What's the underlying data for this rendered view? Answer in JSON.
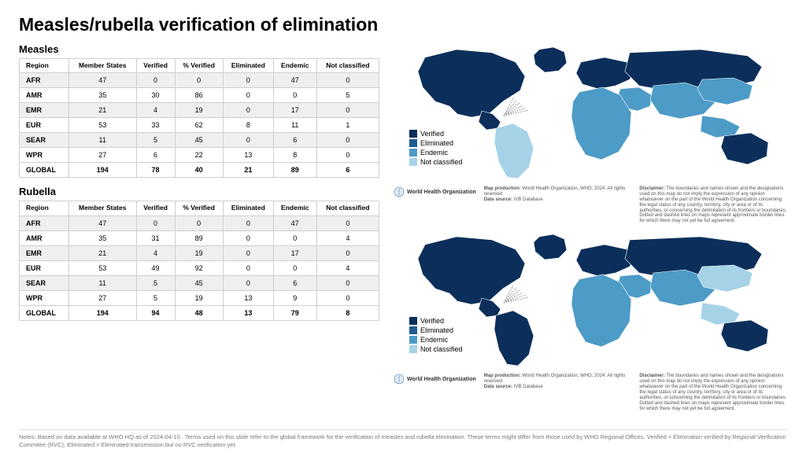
{
  "page_title": "Measles/rubella verification of elimination",
  "columns": [
    "Region",
    "Member States",
    "Verified",
    "% Verified",
    "Eliminated",
    "Endemic",
    "Not classified"
  ],
  "measles": {
    "heading": "Measles",
    "rows": [
      [
        "AFR",
        "47",
        "0",
        "0",
        "0",
        "47",
        "0"
      ],
      [
        "AMR",
        "35",
        "30",
        "86",
        "0",
        "0",
        "5"
      ],
      [
        "EMR",
        "21",
        "4",
        "19",
        "0",
        "17",
        "0"
      ],
      [
        "EUR",
        "53",
        "33",
        "62",
        "8",
        "11",
        "1"
      ],
      [
        "SEAR",
        "11",
        "5",
        "45",
        "0",
        "6",
        "0"
      ],
      [
        "WPR",
        "27",
        "6",
        "22",
        "13",
        "8",
        "0"
      ],
      [
        "GLOBAL",
        "194",
        "78",
        "40",
        "21",
        "89",
        "6"
      ]
    ]
  },
  "rubella": {
    "heading": "Rubella",
    "rows": [
      [
        "AFR",
        "47",
        "0",
        "0",
        "0",
        "47",
        "0"
      ],
      [
        "AMR",
        "35",
        "31",
        "89",
        "0",
        "0",
        "4"
      ],
      [
        "EMR",
        "21",
        "4",
        "19",
        "0",
        "17",
        "0"
      ],
      [
        "EUR",
        "53",
        "49",
        "92",
        "0",
        "0",
        "4"
      ],
      [
        "SEAR",
        "11",
        "5",
        "45",
        "0",
        "6",
        "0"
      ],
      [
        "WPR",
        "27",
        "5",
        "19",
        "13",
        "9",
        "0"
      ],
      [
        "GLOBAL",
        "194",
        "94",
        "48",
        "13",
        "79",
        "8"
      ]
    ]
  },
  "legend": {
    "items": [
      "Verified",
      "Eliminated",
      "Endemic",
      "Not classified"
    ],
    "colors": [
      "#0b2f5a",
      "#1f5b8f",
      "#4d9bc7",
      "#a6d3e8"
    ]
  },
  "map_colors": {
    "verified": "#0b2f5a",
    "eliminated": "#1f5b8f",
    "endemic": "#4d9bc7",
    "not_classified": "#a6d3e8",
    "no_data": "#e6e6e6",
    "stroke": "#ffffff"
  },
  "who_label": "World Health Organization",
  "map_production_label": "Map production:",
  "map_production_value": "World Health Organization, WHO, 2024. All rights reserved",
  "data_source_label": "Data source:",
  "data_source_value": "IVB Database",
  "disclaimer_label": "Disclaimer:",
  "disclaimer_text": "The boundaries and names shown and the designations used on this map do not imply the expression of any opinion whatsoever on the part of the World Health Organization concerning the legal status of any country, territory, city or area or of its authorities, or concerning the delimitation of its frontiers or boundaries. Dotted and dashed lines on maps represent approximate border lines for which there may not yet be full agreement.",
  "notes_text": "Notes: Based on data available at WHO HQ as of 2024-04-10 . Terms used on this slide refer to the global framework for the verification of measles and rubella elimination. These terms might differ from those used by WHO Regional Offices. Verified = Elimination verified by Regional Verification Commitee (RVC); Eliminated = Eliminated transmission but no RVC verification yet."
}
